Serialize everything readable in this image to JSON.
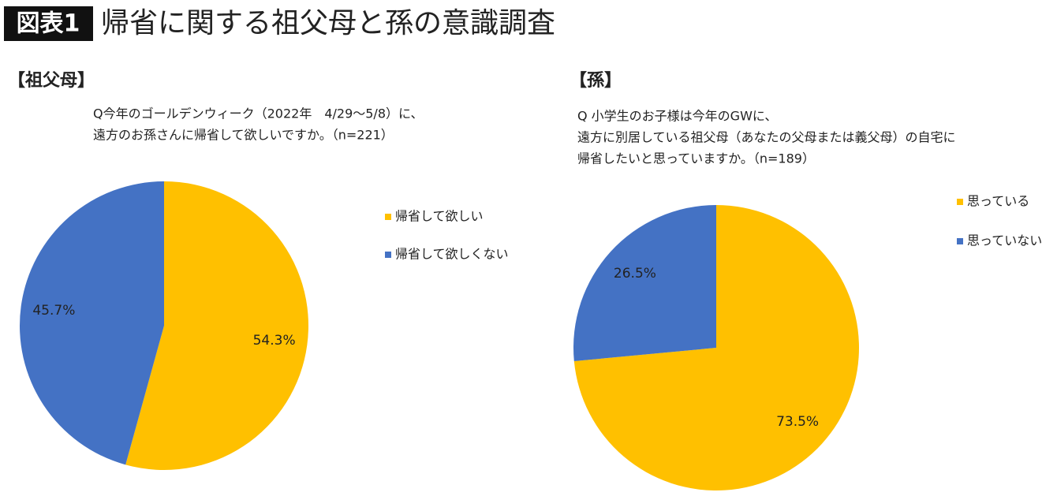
{
  "header": {
    "badge": "図表1",
    "title": "帰省に関する祖父母と孫の意識調査"
  },
  "chart_data": [
    {
      "type": "pie",
      "section": "【祖父母】",
      "title_lines": [
        "Q今年のゴールデンウィーク（2022年　4/29〜5/8）に、",
        "遠方のお孫さんに帰省して欲しいですか。（n=221）"
      ],
      "categories": [
        "帰省して欲しい",
        "帰省して欲しくない"
      ],
      "values": [
        54.3,
        45.7
      ],
      "value_labels": [
        "54.3%",
        "45.7%"
      ],
      "colors": [
        "#FFC000",
        "#4472C4"
      ]
    },
    {
      "type": "pie",
      "section": "【孫】",
      "title_lines": [
        "Q 小学生のお子様は今年のGWに、",
        "遠方に別居している祖父母（あなたの父母または義父母）の自宅に",
        "帰省したいと思っていますか。（n=189）"
      ],
      "categories": [
        "思っている",
        "思っていない"
      ],
      "values": [
        73.5,
        26.5
      ],
      "value_labels": [
        "73.5%",
        "26.5%"
      ],
      "colors": [
        "#FFC000",
        "#4472C4"
      ]
    }
  ]
}
